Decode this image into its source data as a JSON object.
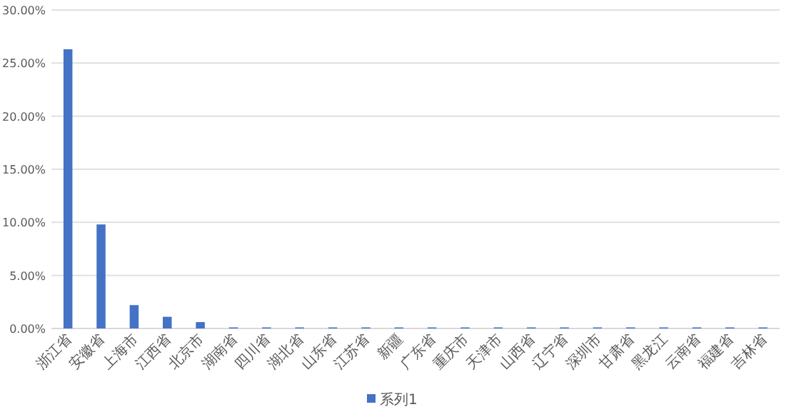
{
  "chart_data": {
    "type": "bar",
    "categories": [
      "浙江省",
      "安徽省",
      "上海市",
      "江西省",
      "北京市",
      "湖南省",
      "四川省",
      "湖北省",
      "山东省",
      "江苏省",
      "新疆",
      "广东省",
      "重庆市",
      "天津市",
      "山西省",
      "辽宁省",
      "深圳市",
      "甘肃省",
      "黑龙江",
      "云南省",
      "福建省",
      "吉林省"
    ],
    "series": [
      {
        "name": "系列1",
        "color": "#4472c4",
        "values": [
          26.3,
          9.8,
          2.2,
          1.1,
          0.6,
          0.1,
          0.1,
          0.1,
          0.1,
          0.1,
          0.1,
          0.1,
          0.1,
          0.1,
          0.1,
          0.1,
          0.1,
          0.1,
          0.1,
          0.1,
          0.1,
          0.1
        ]
      }
    ],
    "ylim": [
      0,
      30
    ],
    "yticks": [
      {
        "value": 0,
        "label": "0.00%"
      },
      {
        "value": 5,
        "label": "5.00%"
      },
      {
        "value": 10,
        "label": "10.00%"
      },
      {
        "value": 15,
        "label": "15.00%"
      },
      {
        "value": 20,
        "label": "20.00%"
      },
      {
        "value": 25,
        "label": "25.00%"
      },
      {
        "value": 30,
        "label": "30.00%"
      }
    ],
    "grid": "y",
    "legend": "bottom"
  }
}
